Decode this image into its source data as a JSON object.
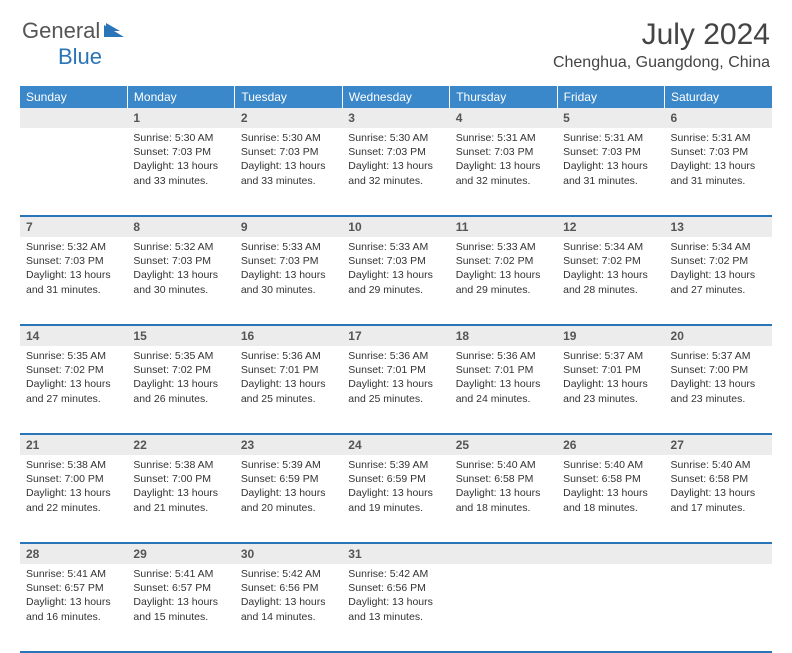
{
  "logo": {
    "part1": "General",
    "part2": "Blue"
  },
  "title": "July 2024",
  "location": "Chenghua, Guangdong, China",
  "colors": {
    "header_bg": "#3a87c9",
    "accent": "#2a74b8",
    "daynum_bg": "#ececec",
    "text": "#333333",
    "page_bg": "#ffffff"
  },
  "weekdays": [
    "Sunday",
    "Monday",
    "Tuesday",
    "Wednesday",
    "Thursday",
    "Friday",
    "Saturday"
  ],
  "weeks": [
    [
      null,
      {
        "day": 1,
        "sunrise": "5:30 AM",
        "sunset": "7:03 PM",
        "daylight": "13 hours and 33 minutes."
      },
      {
        "day": 2,
        "sunrise": "5:30 AM",
        "sunset": "7:03 PM",
        "daylight": "13 hours and 33 minutes."
      },
      {
        "day": 3,
        "sunrise": "5:30 AM",
        "sunset": "7:03 PM",
        "daylight": "13 hours and 32 minutes."
      },
      {
        "day": 4,
        "sunrise": "5:31 AM",
        "sunset": "7:03 PM",
        "daylight": "13 hours and 32 minutes."
      },
      {
        "day": 5,
        "sunrise": "5:31 AM",
        "sunset": "7:03 PM",
        "daylight": "13 hours and 31 minutes."
      },
      {
        "day": 6,
        "sunrise": "5:31 AM",
        "sunset": "7:03 PM",
        "daylight": "13 hours and 31 minutes."
      }
    ],
    [
      {
        "day": 7,
        "sunrise": "5:32 AM",
        "sunset": "7:03 PM",
        "daylight": "13 hours and 31 minutes."
      },
      {
        "day": 8,
        "sunrise": "5:32 AM",
        "sunset": "7:03 PM",
        "daylight": "13 hours and 30 minutes."
      },
      {
        "day": 9,
        "sunrise": "5:33 AM",
        "sunset": "7:03 PM",
        "daylight": "13 hours and 30 minutes."
      },
      {
        "day": 10,
        "sunrise": "5:33 AM",
        "sunset": "7:03 PM",
        "daylight": "13 hours and 29 minutes."
      },
      {
        "day": 11,
        "sunrise": "5:33 AM",
        "sunset": "7:02 PM",
        "daylight": "13 hours and 29 minutes."
      },
      {
        "day": 12,
        "sunrise": "5:34 AM",
        "sunset": "7:02 PM",
        "daylight": "13 hours and 28 minutes."
      },
      {
        "day": 13,
        "sunrise": "5:34 AM",
        "sunset": "7:02 PM",
        "daylight": "13 hours and 27 minutes."
      }
    ],
    [
      {
        "day": 14,
        "sunrise": "5:35 AM",
        "sunset": "7:02 PM",
        "daylight": "13 hours and 27 minutes."
      },
      {
        "day": 15,
        "sunrise": "5:35 AM",
        "sunset": "7:02 PM",
        "daylight": "13 hours and 26 minutes."
      },
      {
        "day": 16,
        "sunrise": "5:36 AM",
        "sunset": "7:01 PM",
        "daylight": "13 hours and 25 minutes."
      },
      {
        "day": 17,
        "sunrise": "5:36 AM",
        "sunset": "7:01 PM",
        "daylight": "13 hours and 25 minutes."
      },
      {
        "day": 18,
        "sunrise": "5:36 AM",
        "sunset": "7:01 PM",
        "daylight": "13 hours and 24 minutes."
      },
      {
        "day": 19,
        "sunrise": "5:37 AM",
        "sunset": "7:01 PM",
        "daylight": "13 hours and 23 minutes."
      },
      {
        "day": 20,
        "sunrise": "5:37 AM",
        "sunset": "7:00 PM",
        "daylight": "13 hours and 23 minutes."
      }
    ],
    [
      {
        "day": 21,
        "sunrise": "5:38 AM",
        "sunset": "7:00 PM",
        "daylight": "13 hours and 22 minutes."
      },
      {
        "day": 22,
        "sunrise": "5:38 AM",
        "sunset": "7:00 PM",
        "daylight": "13 hours and 21 minutes."
      },
      {
        "day": 23,
        "sunrise": "5:39 AM",
        "sunset": "6:59 PM",
        "daylight": "13 hours and 20 minutes."
      },
      {
        "day": 24,
        "sunrise": "5:39 AM",
        "sunset": "6:59 PM",
        "daylight": "13 hours and 19 minutes."
      },
      {
        "day": 25,
        "sunrise": "5:40 AM",
        "sunset": "6:58 PM",
        "daylight": "13 hours and 18 minutes."
      },
      {
        "day": 26,
        "sunrise": "5:40 AM",
        "sunset": "6:58 PM",
        "daylight": "13 hours and 18 minutes."
      },
      {
        "day": 27,
        "sunrise": "5:40 AM",
        "sunset": "6:58 PM",
        "daylight": "13 hours and 17 minutes."
      }
    ],
    [
      {
        "day": 28,
        "sunrise": "5:41 AM",
        "sunset": "6:57 PM",
        "daylight": "13 hours and 16 minutes."
      },
      {
        "day": 29,
        "sunrise": "5:41 AM",
        "sunset": "6:57 PM",
        "daylight": "13 hours and 15 minutes."
      },
      {
        "day": 30,
        "sunrise": "5:42 AM",
        "sunset": "6:56 PM",
        "daylight": "13 hours and 14 minutes."
      },
      {
        "day": 31,
        "sunrise": "5:42 AM",
        "sunset": "6:56 PM",
        "daylight": "13 hours and 13 minutes."
      },
      null,
      null,
      null
    ]
  ],
  "labels": {
    "sunrise": "Sunrise:",
    "sunset": "Sunset:",
    "daylight": "Daylight:"
  }
}
